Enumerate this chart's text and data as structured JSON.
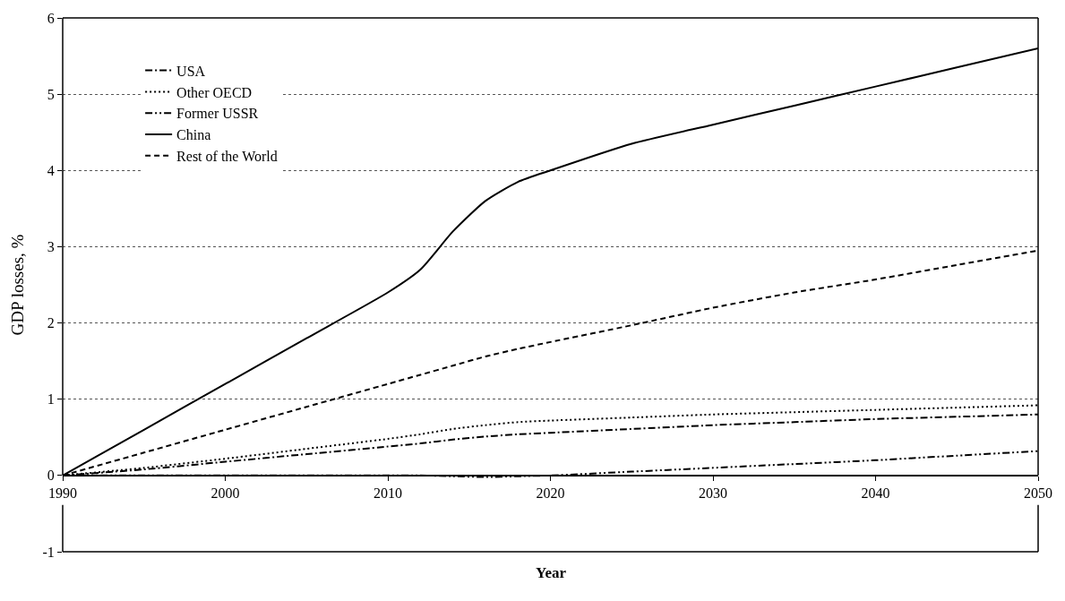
{
  "chart_data": {
    "type": "line",
    "xlabel": "Year",
    "ylabel": "GDP losses, %",
    "x": [
      1990,
      1995,
      2000,
      2005,
      2010,
      2012,
      2014,
      2016,
      2018,
      2020,
      2025,
      2030,
      2035,
      2040,
      2045,
      2050
    ],
    "series": [
      {
        "name": "USA",
        "color": "#000000",
        "line_style": "dashdot",
        "values": [
          0,
          0.08,
          0.18,
          0.28,
          0.38,
          0.42,
          0.47,
          0.51,
          0.54,
          0.56,
          0.61,
          0.66,
          0.7,
          0.74,
          0.77,
          0.8
        ]
      },
      {
        "name": "Other OECD",
        "color": "#000000",
        "line_style": "dotted",
        "values": [
          0,
          0.1,
          0.22,
          0.35,
          0.48,
          0.54,
          0.61,
          0.66,
          0.7,
          0.72,
          0.76,
          0.8,
          0.83,
          0.86,
          0.89,
          0.92
        ]
      },
      {
        "name": "Former USSR",
        "color": "#000000",
        "line_style": "dashdotdot",
        "values": [
          0,
          0,
          0,
          0,
          0,
          0,
          -0.01,
          -0.02,
          -0.01,
          0,
          0.05,
          0.1,
          0.15,
          0.2,
          0.26,
          0.32
        ]
      },
      {
        "name": "China",
        "color": "#000000",
        "line_style": "solid",
        "values": [
          0,
          0.6,
          1.2,
          1.8,
          2.4,
          2.7,
          3.2,
          3.6,
          3.85,
          4.0,
          4.35,
          4.6,
          4.85,
          5.1,
          5.35,
          5.6
        ]
      },
      {
        "name": "Rest of the World",
        "color": "#000000",
        "line_style": "dashed",
        "values": [
          0,
          0.3,
          0.6,
          0.9,
          1.2,
          1.32,
          1.44,
          1.56,
          1.66,
          1.75,
          1.97,
          2.2,
          2.4,
          2.57,
          2.76,
          2.95
        ]
      }
    ],
    "xlim": [
      1990,
      2050
    ],
    "xticks": [
      1990,
      2000,
      2010,
      2020,
      2030,
      2040,
      2050
    ],
    "ylim": [
      -1,
      6
    ],
    "yticks": [
      -1,
      0,
      1,
      2,
      3,
      4,
      5,
      6
    ],
    "grid": "y",
    "legend": "top left",
    "marker": "none"
  }
}
